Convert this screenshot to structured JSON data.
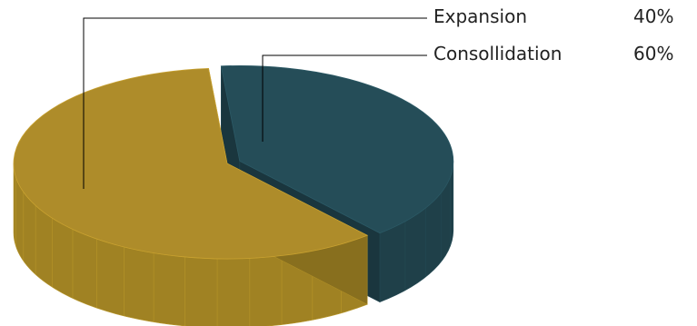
{
  "chart_data": {
    "type": "pie",
    "style": "3d-exploded",
    "title": "",
    "slices": [
      {
        "label": "Expansion",
        "value": 40,
        "value_label": "40%",
        "color": "#254d58",
        "side_color": "#1f4049"
      },
      {
        "label": "Consollidation",
        "value": 60,
        "value_label": "60%",
        "color": "#ae8c2a",
        "side_color": "#a08223"
      }
    ],
    "legend_placement": "top-right",
    "leader_line_color": "#000000"
  }
}
